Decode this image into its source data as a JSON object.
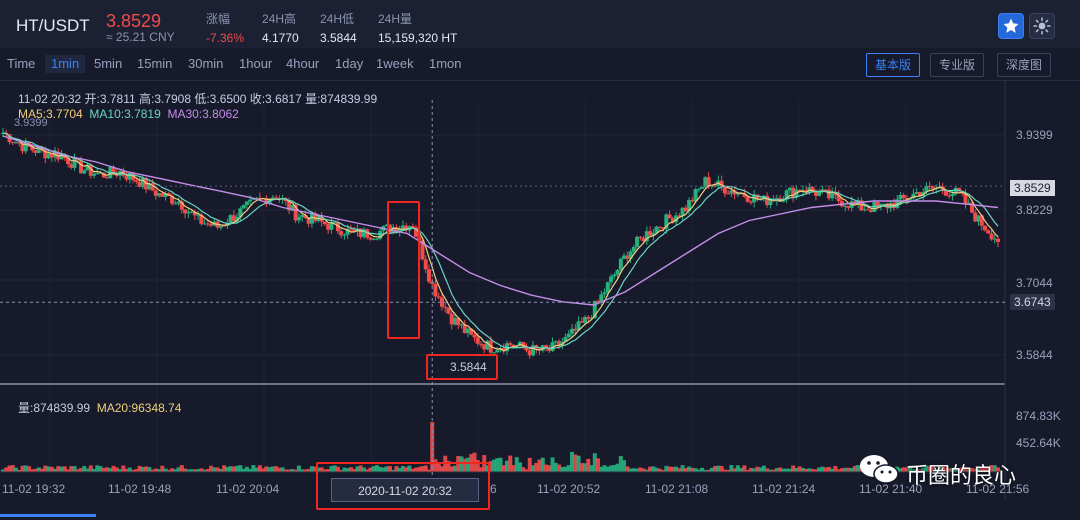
{
  "header": {
    "pair": "HT/USDT",
    "price": "3.8529",
    "cny": "≈ 25.21 CNY",
    "stats": [
      {
        "label": "涨幅",
        "value": "-7.36%"
      },
      {
        "label": "24H高",
        "value": "4.1770"
      },
      {
        "label": "24H低",
        "value": "3.5844"
      },
      {
        "label": "24H量",
        "value": "15,159,320 HT"
      }
    ],
    "icons": [
      "star-icon",
      "sun-icon"
    ],
    "colors": {
      "up": "#26b07e",
      "down": "#f14b4b",
      "accent": "#3b82f6"
    }
  },
  "intervals": [
    "Time",
    "1min",
    "5min",
    "15min",
    "30min",
    "1hour",
    "4hour",
    "1day",
    "1week",
    "1mon"
  ],
  "active_interval": "1min",
  "views": [
    "基本版",
    "专业版",
    "深度图"
  ],
  "active_view": "基本版",
  "ohlc": "11-02 20:32  开:3.7811  高:3.7908  低:3.6500  收:3.6817  量:874839.99",
  "ma": {
    "ma5": "MA5:3.7704",
    "ma10": "MA10:3.7819",
    "ma30": "MA30:3.8062"
  },
  "volume_info": {
    "vol": "量:874839.99",
    "ma20": "MA20:96348.74"
  },
  "overlay": {
    "crosshair_time": "2020-11-02 20:32",
    "crosshair_price": "3.6743",
    "current_price": "3.8529",
    "min_label": "3.5844",
    "left_label": "3.9399",
    "hidden_tick": "6"
  },
  "watermark": "币圈的良心",
  "chart_data": {
    "type": "candlestick",
    "x_ticks": [
      "11-02 19:32",
      "11-02 19:48",
      "11-02 20:04",
      "11-02 20:32",
      "11-02 20:52",
      "11-02 21:08",
      "11-02 21:24",
      "11-02 21:40",
      "11-02 21:56"
    ],
    "y_ticks": [
      3.9399,
      3.8229,
      3.7044,
      3.5844
    ],
    "y_range": [
      3.57,
      3.97
    ],
    "volume_ticks": [
      "874.83K",
      "452.64K"
    ],
    "price_path": [
      3.935,
      3.915,
      3.905,
      3.9,
      3.88,
      3.87,
      3.875,
      3.86,
      3.84,
      3.83,
      3.8,
      3.79,
      3.81,
      3.83,
      3.84,
      3.81,
      3.8,
      3.79,
      3.78,
      3.78,
      3.79,
      3.795,
      3.7,
      3.65,
      3.62,
      3.605,
      3.61,
      3.6,
      3.6,
      3.62,
      3.65,
      3.7,
      3.75,
      3.78,
      3.8,
      3.82,
      3.86,
      3.85,
      3.84,
      3.83,
      3.84,
      3.85,
      3.84,
      3.83,
      3.82,
      3.82,
      3.83,
      3.845,
      3.85,
      3.84,
      3.8,
      3.77
    ],
    "ma30_path": [
      3.93,
      3.915,
      3.9,
      3.89,
      3.875,
      3.865,
      3.855,
      3.845,
      3.835,
      3.82,
      3.81,
      3.8,
      3.79,
      3.78,
      3.75,
      3.72,
      3.7,
      3.685,
      3.675,
      3.67,
      3.69,
      3.72,
      3.75,
      3.78,
      3.8,
      3.81,
      3.82,
      3.825,
      3.83,
      3.83,
      3.83,
      3.825,
      3.82
    ],
    "crosshair_index": 22
  }
}
